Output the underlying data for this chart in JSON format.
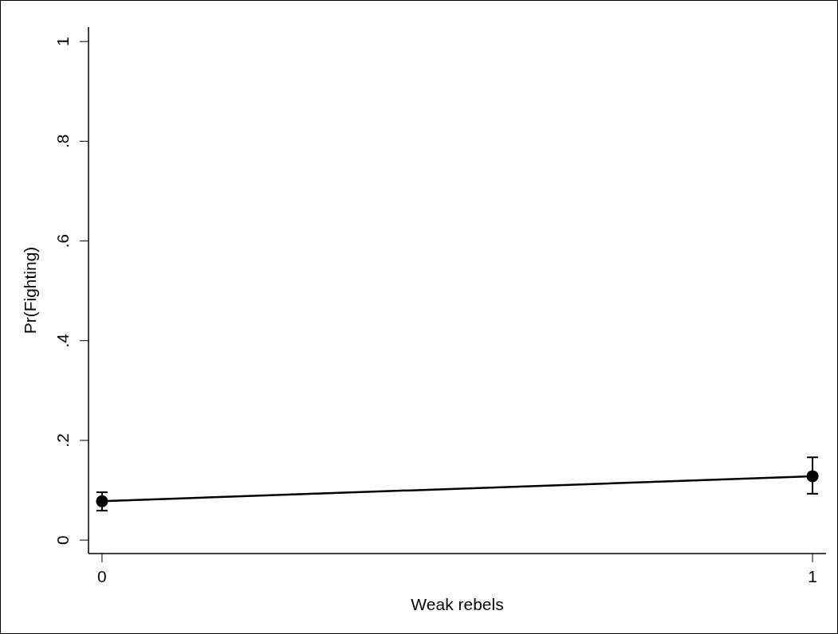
{
  "chart_data": {
    "type": "line",
    "xlabel": "Weak rebels",
    "ylabel": "Pr(Fighting)",
    "x": [
      0,
      1
    ],
    "series": [
      {
        "color": "#000000",
        "values": [
          0.078,
          0.128
        ],
        "errors": [
          [
            0.059,
            0.096
          ],
          [
            0.093,
            0.166
          ]
        ]
      }
    ],
    "xlim": [
      -0.019,
      1.019
    ],
    "ylim": [
      -0.027,
      1.029
    ],
    "xticks": [
      0,
      1
    ],
    "yticks": [
      0,
      {
        "value": 0.2,
        "label": ".2"
      },
      {
        "value": 0.4,
        "label": ".4"
      },
      {
        "value": 0.6,
        "label": ".6"
      },
      {
        "value": 0.8,
        "label": ".8"
      },
      1
    ],
    "marker": "circle",
    "grid": false
  }
}
